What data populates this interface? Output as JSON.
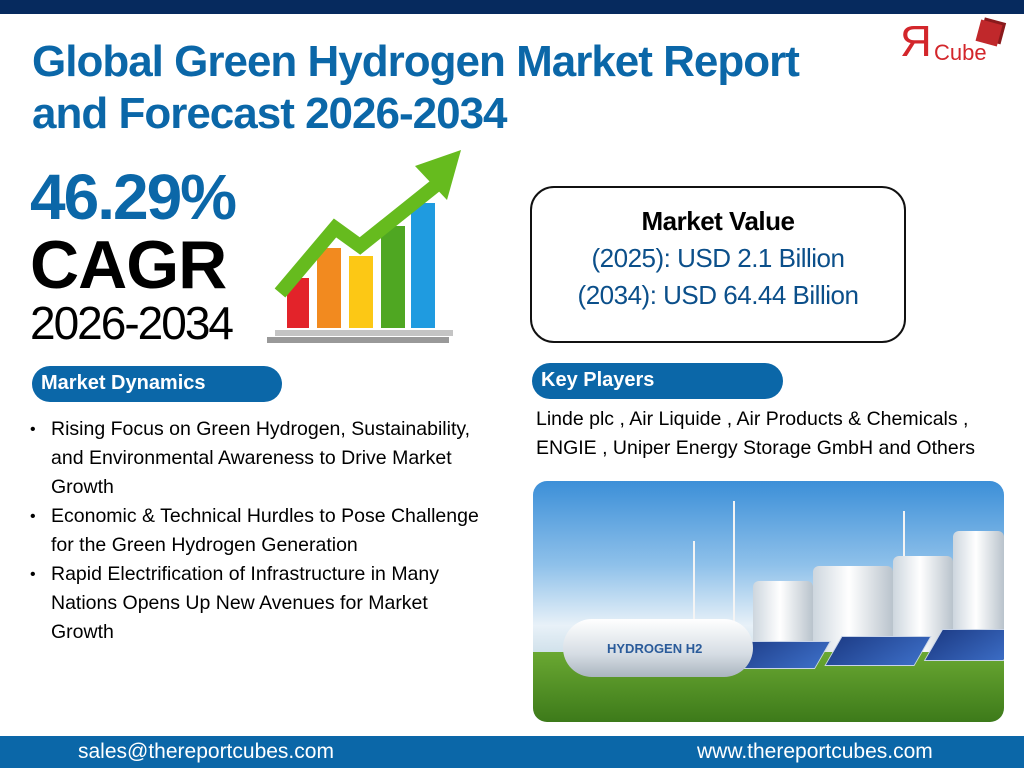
{
  "header": {
    "title_line1": "Global Green Hydrogen Market Report",
    "title_line2": "and Forecast 2026-2034",
    "logo_text": "RCube"
  },
  "cagr": {
    "value": "46.29%",
    "label": "CAGR",
    "period": "2026-2034"
  },
  "market_value": {
    "heading": "Market Value",
    "line_2025": "(2025): USD 2.1 Billion",
    "line_2034": "(2034): USD 64.44 Billion"
  },
  "market_dynamics": {
    "heading": "Market Dynamics",
    "items": [
      "Rising Focus on Green Hydrogen, Sustainability, and Environmental Awareness to Drive Market Growth",
      "Economic & Technical Hurdles to Pose Challenge for the Green Hydrogen Generation",
      "Rapid Electrification of Infrastructure in Many Nations Opens Up New Avenues for Market Growth"
    ]
  },
  "key_players": {
    "heading": "Key Players",
    "text": "Linde plc , Air Liquide , Air Products & Chemicals , ENGIE , Uniper Energy Storage GmbH and Others"
  },
  "photo": {
    "tank_label": "HYDROGEN H2"
  },
  "footer": {
    "email": "sales@thereportcubes.com",
    "website": "www.thereportcubes.com"
  },
  "colors": {
    "navy": "#062a5e",
    "blue": "#0b67a8",
    "red": "#d3262b"
  }
}
